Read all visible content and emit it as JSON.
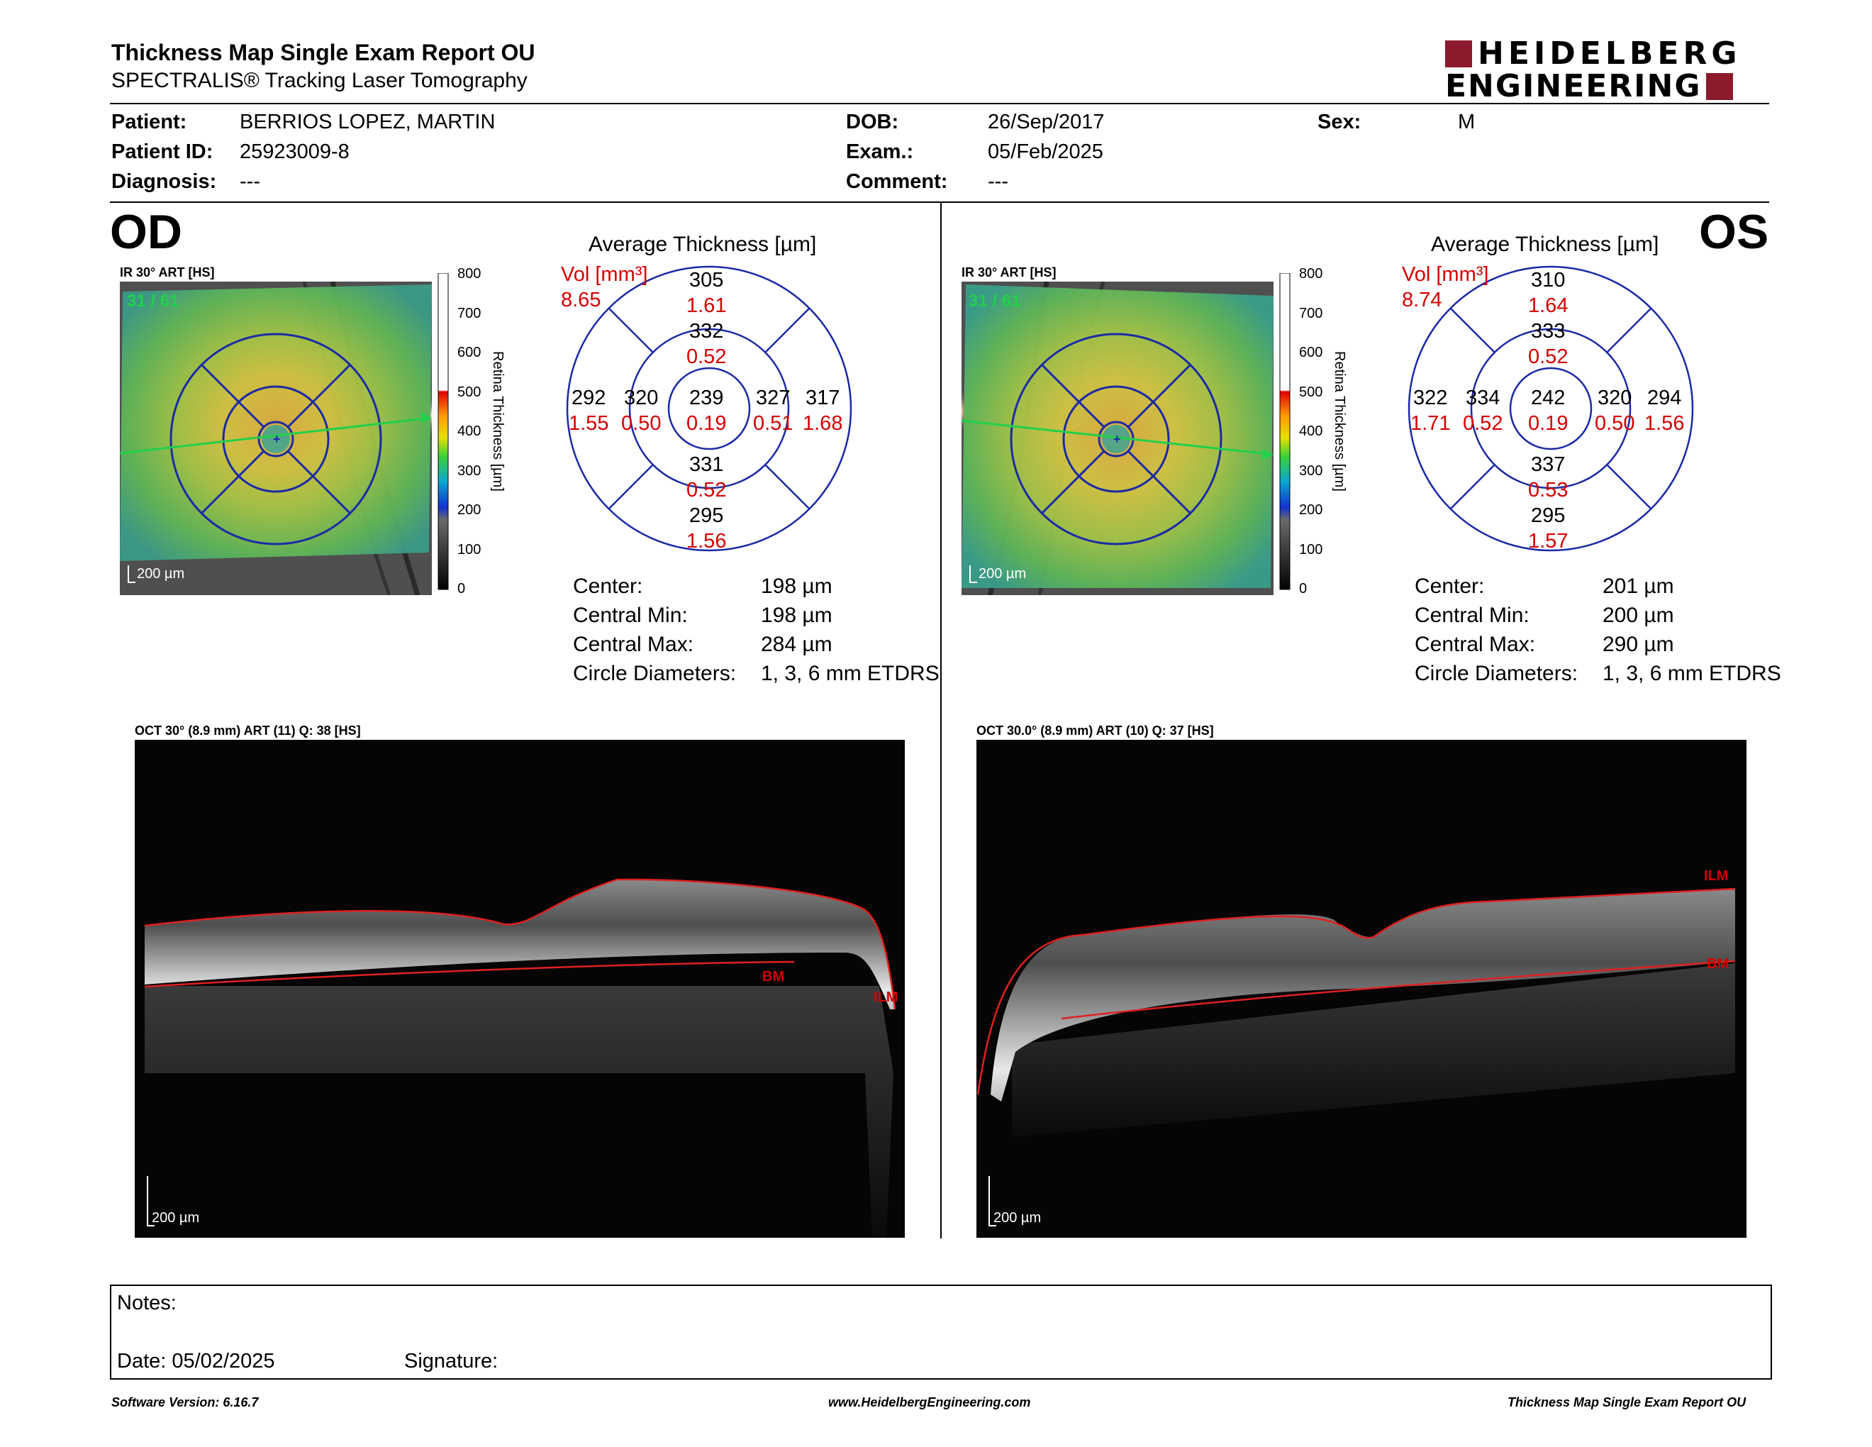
{
  "header": {
    "title": "Thickness Map Single Exam Report OU",
    "subtitle": "SPECTRALIS® Tracking Laser Tomography",
    "logo_line1": "HEIDELBERG",
    "logo_line2": "ENGINEERING"
  },
  "patient": {
    "patient_label": "Patient:",
    "patient_value": "BERRIOS LOPEZ, MARTIN",
    "id_label": "Patient ID:",
    "id_value": "25923009-8",
    "diagnosis_label": "Diagnosis:",
    "diagnosis_value": "---",
    "dob_label": "DOB:",
    "dob_value": "26/Sep/2017",
    "exam_label": "Exam.:",
    "exam_value": "05/Feb/2025",
    "comment_label": "Comment:",
    "comment_value": "---",
    "sex_label": "Sex:",
    "sex_value": "M"
  },
  "colors": {
    "grid_blue": "#1b2aa6",
    "red": "#d40000",
    "brand": "#8c1a2c",
    "fixation_green": "#22d04a"
  },
  "od": {
    "eye_label": "OD",
    "ir_label": "IR 30° ART [HS]",
    "frame_count": "31 / 61",
    "scale_bar": "200 µm",
    "colorbar_ticks": [
      "800",
      "700",
      "600",
      "500",
      "400",
      "300",
      "200",
      "100",
      "0"
    ],
    "colorbar_title": "Retina Thickness [µm]",
    "avg_title": "Average Thickness [µm]",
    "vol_label": "Vol [mm³]",
    "vol_total": "8.65",
    "sectors": {
      "outer_sup": {
        "t": "305",
        "v": "1.61"
      },
      "inner_sup": {
        "t": "332",
        "v": "0.52"
      },
      "outer_left": {
        "t": "292",
        "v": "1.55"
      },
      "inner_left": {
        "t": "320",
        "v": "0.50"
      },
      "center": {
        "t": "239",
        "v": "0.19"
      },
      "inner_right": {
        "t": "327",
        "v": "0.51"
      },
      "outer_right": {
        "t": "317",
        "v": "1.68"
      },
      "inner_inf": {
        "t": "331",
        "v": "0.52"
      },
      "outer_inf": {
        "t": "295",
        "v": "1.56"
      }
    },
    "stats": [
      {
        "label": "Center:",
        "value": "198 µm"
      },
      {
        "label": "Central Min:",
        "value": "198 µm"
      },
      {
        "label": "Central Max:",
        "value": "284 µm"
      },
      {
        "label": "Circle Diameters:",
        "value": "1, 3, 6 mm ETDRS"
      }
    ],
    "oct_label": "OCT 30° (8.9 mm) ART (11) Q: 38 [HS]",
    "oct_scale": "200 µm",
    "ilm": "ILM",
    "bm": "BM"
  },
  "os": {
    "eye_label": "OS",
    "ir_label": "IR 30° ART [HS]",
    "frame_count": "31 / 61",
    "scale_bar": "200 µm",
    "colorbar_ticks": [
      "800",
      "700",
      "600",
      "500",
      "400",
      "300",
      "200",
      "100",
      "0"
    ],
    "colorbar_title": "Retina Thickness [µm]",
    "avg_title": "Average Thickness [µm]",
    "vol_label": "Vol [mm³]",
    "vol_total": "8.74",
    "sectors": {
      "outer_sup": {
        "t": "310",
        "v": "1.64"
      },
      "inner_sup": {
        "t": "333",
        "v": "0.52"
      },
      "outer_left": {
        "t": "322",
        "v": "1.71"
      },
      "inner_left": {
        "t": "334",
        "v": "0.52"
      },
      "center": {
        "t": "242",
        "v": "0.19"
      },
      "inner_right": {
        "t": "320",
        "v": "0.50"
      },
      "outer_right": {
        "t": "294",
        "v": "1.56"
      },
      "inner_inf": {
        "t": "337",
        "v": "0.53"
      },
      "outer_inf": {
        "t": "295",
        "v": "1.57"
      }
    },
    "stats": [
      {
        "label": "Center:",
        "value": "201 µm"
      },
      {
        "label": "Central Min:",
        "value": "200 µm"
      },
      {
        "label": "Central Max:",
        "value": "290 µm"
      },
      {
        "label": "Circle Diameters:",
        "value": "1, 3, 6 mm ETDRS"
      }
    ],
    "oct_label": "OCT 30.0° (8.9 mm) ART (10) Q: 37 [HS]",
    "oct_scale": "200 µm",
    "ilm": "ILM",
    "bm": "BM"
  },
  "notes": {
    "notes_label": "Notes:",
    "date_label": "Date: 05/02/2025",
    "signature_label": "Signature:"
  },
  "footer": {
    "version": "Software Version: 6.16.7",
    "website": "www.HeidelbergEngineering.com",
    "report_name": "Thickness Map Single Exam Report OU"
  }
}
